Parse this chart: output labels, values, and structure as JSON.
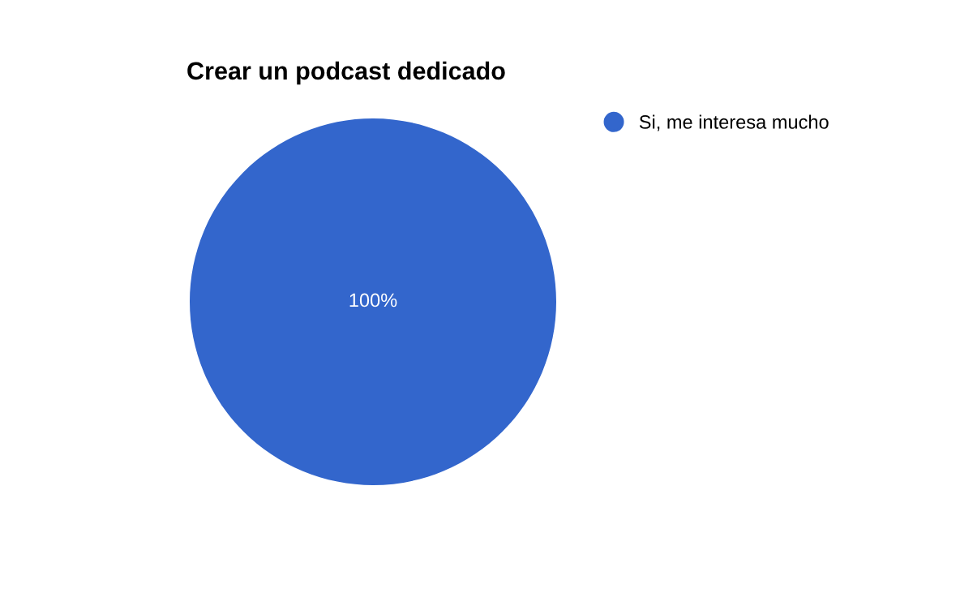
{
  "chart_data": {
    "type": "pie",
    "title": "Crear un podcast dedicado",
    "categories": [
      "Si, me interesa mucho"
    ],
    "values": [
      100
    ],
    "colors": [
      "#3366cc"
    ],
    "value_labels": [
      "100%"
    ],
    "legend": "right"
  }
}
